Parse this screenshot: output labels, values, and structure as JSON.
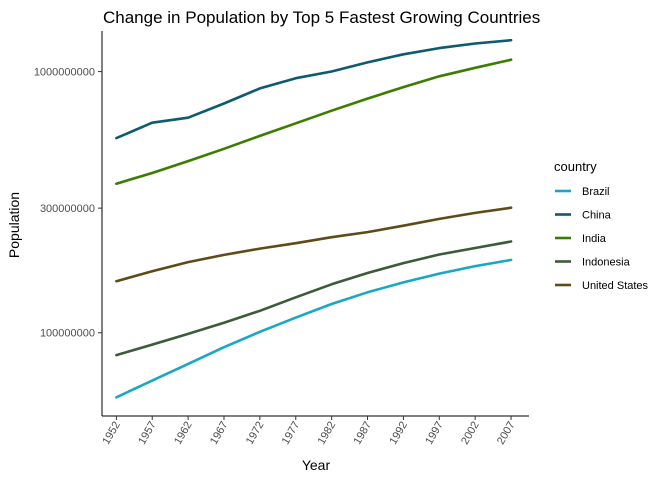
{
  "chart_data": {
    "type": "line",
    "title": "Change in Population by Top 5 Fastest Growing Countries",
    "xlabel": "Year",
    "ylabel": "Population",
    "x": [
      1952,
      1957,
      1962,
      1967,
      1972,
      1977,
      1982,
      1987,
      1992,
      1997,
      2002,
      2007
    ],
    "y_scale": "log",
    "ylim": [
      48000000,
      1430000000
    ],
    "y_ticks": [
      100000000,
      300000000,
      1000000000
    ],
    "y_tick_labels": [
      "100000000",
      "300000000",
      "1000000000"
    ],
    "x_tick_labels": [
      "1952",
      "1957",
      "1962",
      "1967",
      "1972",
      "1977",
      "1982",
      "1987",
      "1992",
      "1997",
      "2002",
      "2007"
    ],
    "grid": false,
    "legend": {
      "title": "country",
      "position": "right"
    },
    "series": [
      {
        "name": "Brazil",
        "color": "#1aa7c4",
        "values": [
          56600000,
          65600000,
          76000000,
          88000000,
          100800000,
          114300000,
          128900000,
          142900000,
          155900000,
          168500000,
          179900000,
          190000000
        ]
      },
      {
        "name": "China",
        "color": "#0e5a6e",
        "values": [
          556300000,
          637400000,
          665800000,
          754600000,
          862000000,
          943500000,
          1000300000,
          1084000000,
          1164900000,
          1230100000,
          1280400000,
          1318700000
        ]
      },
      {
        "name": "India",
        "color": "#3a7d00",
        "values": [
          372000000,
          409000000,
          454000000,
          506000000,
          567000000,
          634000000,
          708000000,
          788000000,
          872000000,
          959000000,
          1034000000,
          1110000000
        ]
      },
      {
        "name": "Indonesia",
        "color": "#3d5a3a",
        "values": [
          82100000,
          90100000,
          99000000,
          109300000,
          121300000,
          136700000,
          153300000,
          169300000,
          184800000,
          199300000,
          211100000,
          223500000
        ]
      },
      {
        "name": "United States",
        "color": "#5e4b17",
        "values": [
          157600000,
          171900000,
          186500000,
          198700000,
          209900000,
          220200000,
          232200000,
          242800000,
          256900000,
          272900000,
          287700000,
          301100000
        ]
      }
    ]
  }
}
